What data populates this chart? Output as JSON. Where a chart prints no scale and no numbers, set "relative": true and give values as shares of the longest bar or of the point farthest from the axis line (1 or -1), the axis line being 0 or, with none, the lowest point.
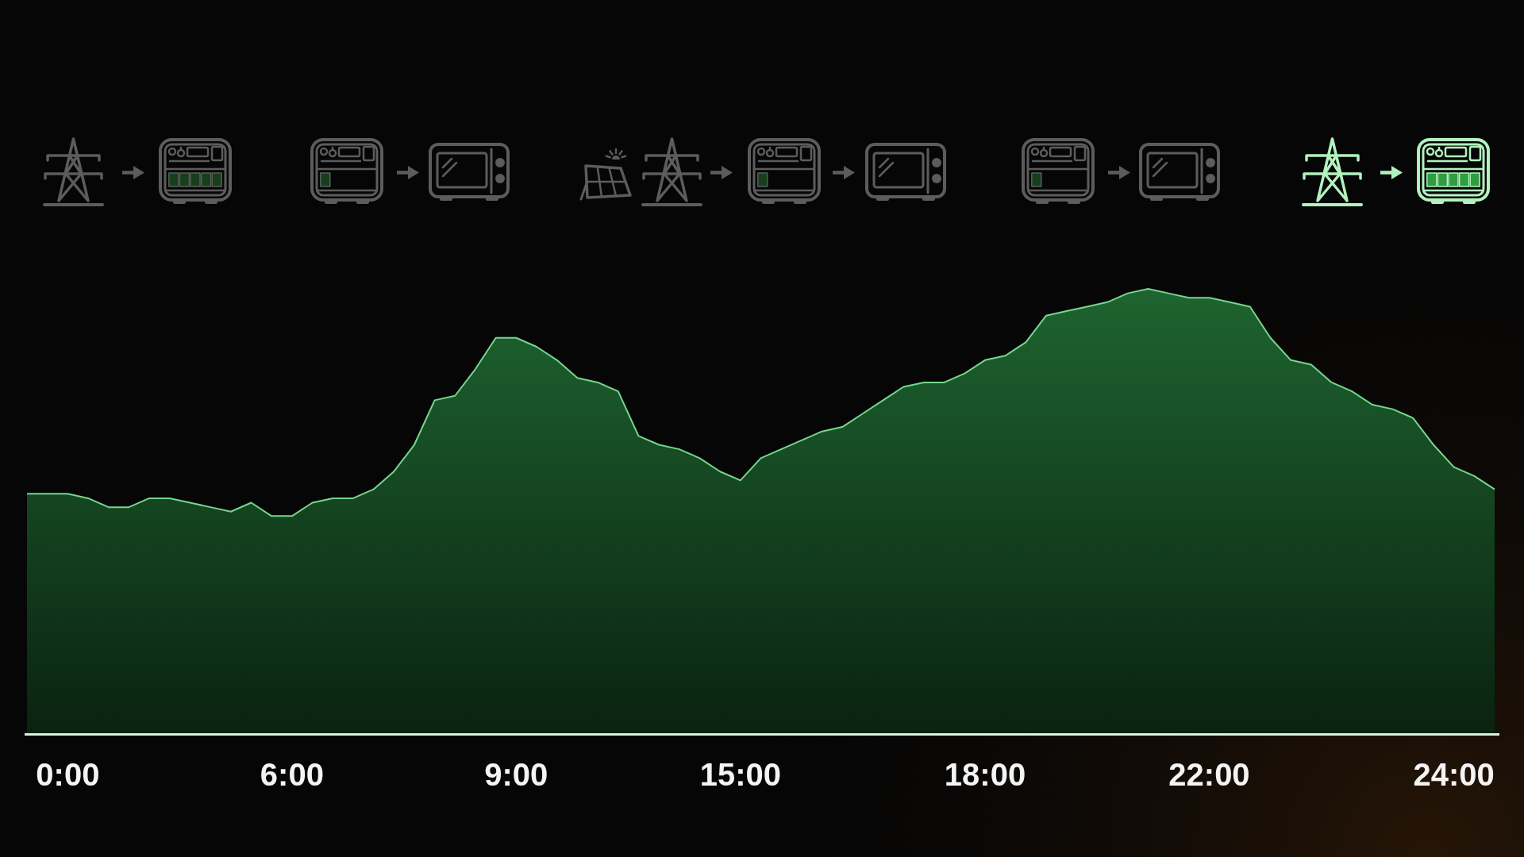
{
  "chart_data": {
    "type": "area",
    "relative": true,
    "color": "#1e6430",
    "categories": [
      null,
      null,
      "0:00",
      null,
      null,
      null,
      null,
      null,
      null,
      null,
      null,
      null,
      null,
      "6:00",
      null,
      null,
      null,
      null,
      null,
      null,
      null,
      null,
      null,
      null,
      "9:00",
      null,
      null,
      null,
      null,
      null,
      null,
      null,
      null,
      null,
      null,
      "15:00",
      null,
      null,
      null,
      null,
      null,
      null,
      null,
      null,
      null,
      null,
      null,
      "18:00",
      null,
      null,
      null,
      null,
      null,
      null,
      null,
      null,
      null,
      null,
      "22:00",
      null,
      null,
      null,
      null,
      null,
      null,
      null,
      null,
      null,
      null,
      null,
      "24:00",
      null,
      null
    ],
    "values": [
      0.54,
      0.54,
      0.54,
      0.53,
      0.51,
      0.51,
      0.53,
      0.53,
      0.52,
      0.51,
      0.5,
      0.52,
      0.49,
      0.49,
      0.52,
      0.53,
      0.53,
      0.55,
      0.59,
      0.65,
      0.75,
      0.76,
      0.82,
      0.89,
      0.89,
      0.87,
      0.84,
      0.8,
      0.79,
      0.77,
      0.67,
      0.65,
      0.64,
      0.62,
      0.59,
      0.57,
      0.62,
      0.64,
      0.66,
      0.68,
      0.69,
      0.72,
      0.75,
      0.78,
      0.79,
      0.79,
      0.81,
      0.84,
      0.85,
      0.88,
      0.94,
      0.95,
      0.96,
      0.97,
      0.99,
      1,
      0.99,
      0.98,
      0.98,
      0.97,
      0.96,
      0.89,
      0.84,
      0.83,
      0.79,
      0.77,
      0.74,
      0.73,
      0.71,
      0.65,
      0.6,
      0.58,
      0.55
    ]
  }
}
